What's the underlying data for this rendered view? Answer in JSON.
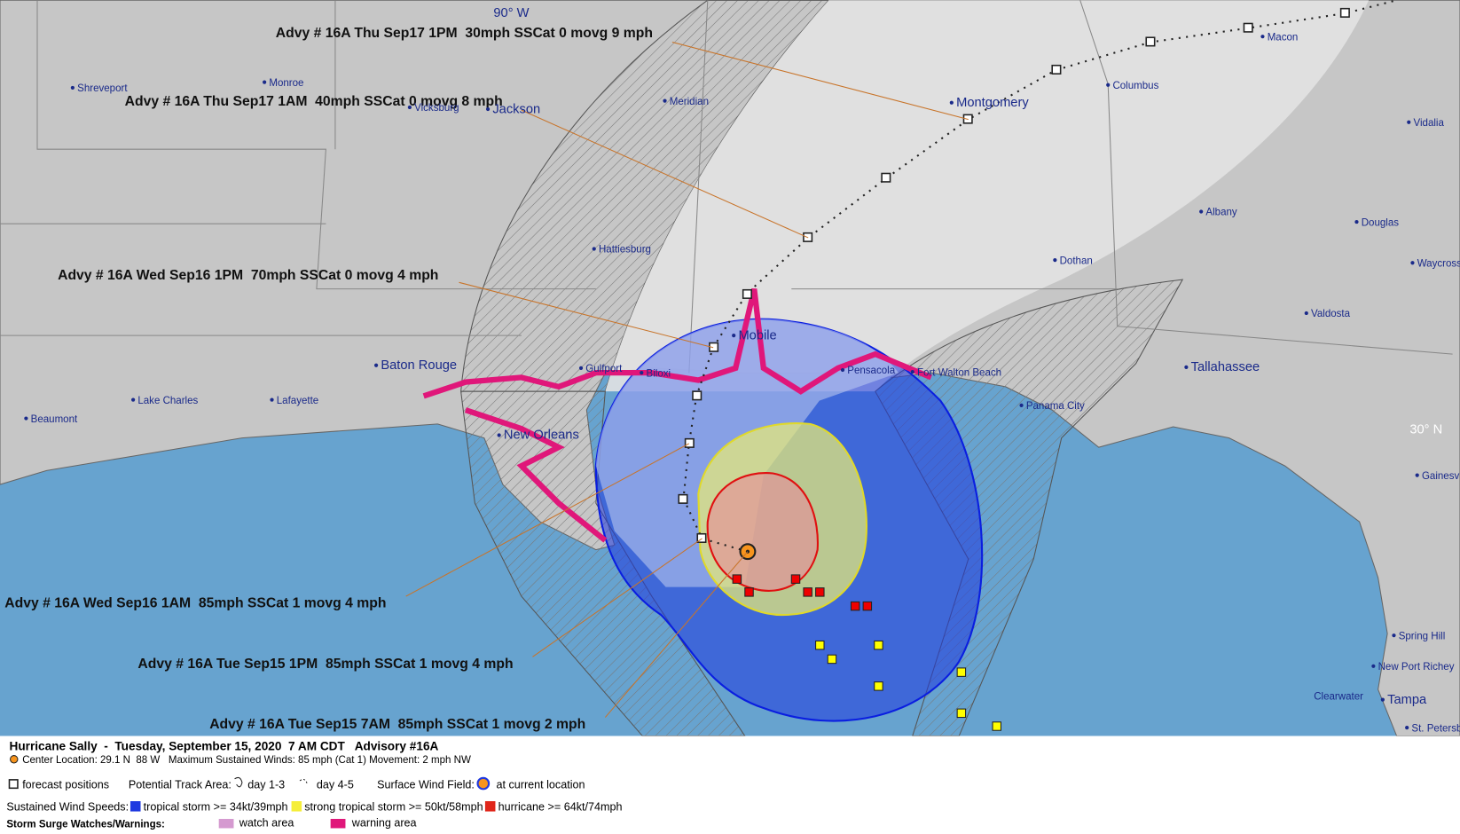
{
  "map": {
    "grid_labels": [
      "90° W",
      "30° N"
    ],
    "advisories": [
      "Advy # 16A Thu Sep17 1PM  30mph SSCat 0 movg 9 mph",
      "Advy # 16A Thu Sep17 1AM  40mph SSCat 0 movg 8 mph",
      "Advy # 16A Wed Sep16 1PM  70mph SSCat 0 movg 4 mph",
      "Advy # 16A Wed Sep16 1AM  85mph SSCat 1 movg 4 mph",
      "Advy # 16A Tue Sep15 1PM  85mph SSCat 1 movg 4 mph",
      "Advy # 16A Tue Sep15 7AM  85mph SSCat 1 movg 2 mph"
    ],
    "cities": [
      "Shreveport",
      "Monroe",
      "Vicksburg",
      "Jackson",
      "Meridian",
      "Montgomery",
      "Columbus",
      "Macon",
      "Vidalia",
      "Albany",
      "Douglas",
      "Dothan",
      "Waycross",
      "Hattiesburg",
      "Mobile",
      "Gulfport",
      "Biloxi",
      "Pensacola",
      "Fort Walton Beach",
      "Panama City",
      "Tallahassee",
      "Valdosta",
      "Baton Rouge",
      "Lake Charles",
      "Lafayette",
      "Beaumont",
      "New Orleans",
      "Gainesville",
      "Spring Hill",
      "New Port Richey",
      "Clearwater",
      "Tampa",
      "St. Petersburg"
    ]
  },
  "legend": {
    "title": "Hurricane Sally  -  Tuesday, September 15, 2020  7 AM CDT   Advisory #16A",
    "center": "Center Location: 29.1 N  88 W   Maximum Sustained Winds: 85 mph (Cat 1) Movement: 2 mph NW",
    "forecast": "forecast positions",
    "track_area": "Potential Track Area:",
    "day13": "day 1-3",
    "day45": "day 4-5",
    "wind_field": "Surface Wind Field:",
    "current": "at current location",
    "speeds": "Sustained Wind Speeds:",
    "ts": "tropical storm >= 34kt/39mph",
    "sts": "strong tropical storm >= 50kt/58mph",
    "hu": "hurricane >= 64kt/74mph",
    "surge": "Storm Surge Watches/Warnings:",
    "watch": "watch area",
    "warning": "warning area"
  }
}
